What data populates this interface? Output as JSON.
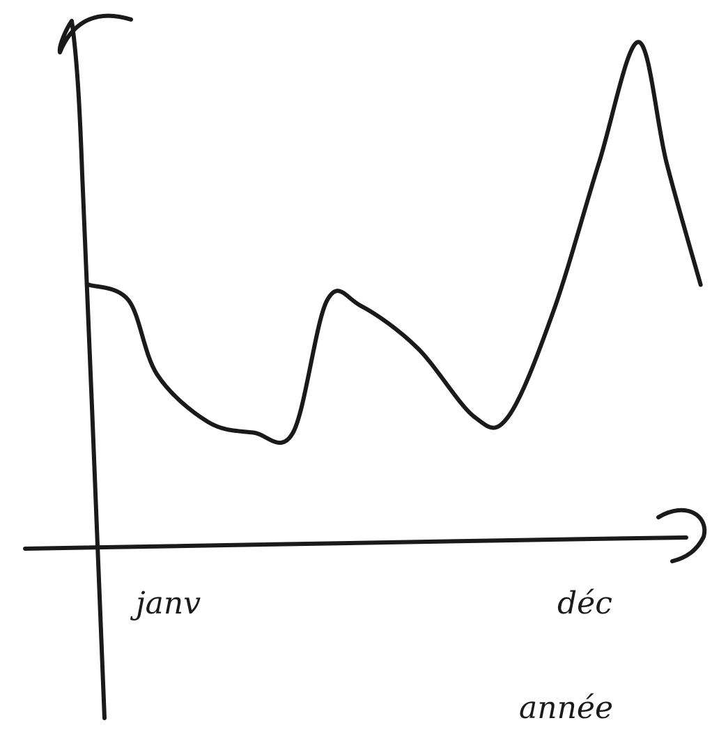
{
  "chart_data": {
    "type": "line",
    "title": "",
    "xlabel": "année",
    "ylabel": "",
    "x_tick_labels": [
      "janv",
      "déc"
    ],
    "series": [
      {
        "x": [
          0.0,
          0.07,
          0.12,
          0.21,
          0.29,
          0.36,
          0.42,
          0.48,
          0.58,
          0.68,
          0.74,
          0.82,
          0.9,
          0.97,
          1.02,
          1.08
        ],
        "values": [
          0.5,
          0.47,
          0.33,
          0.24,
          0.22,
          0.22,
          0.47,
          0.46,
          0.38,
          0.25,
          0.25,
          0.45,
          0.73,
          0.96,
          0.73,
          0.5
        ]
      }
    ],
    "xlim": [
      0,
      1.1
    ],
    "ylim": [
      0,
      1
    ],
    "grid": false,
    "legend": "none",
    "style": "hand-drawn sketch",
    "colors": {
      "ink": "#1a1a1a",
      "background": "#ffffff"
    }
  }
}
